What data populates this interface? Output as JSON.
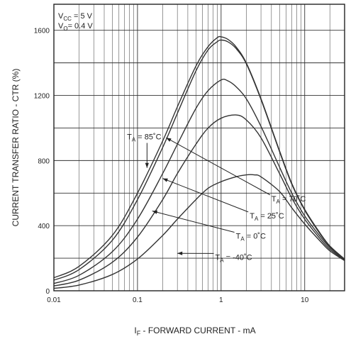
{
  "chart_data": {
    "type": "line",
    "title": "",
    "xlabel": "I_F - FORWARD CURRENT - mA",
    "xlabel_main": "I",
    "xlabel_sub": "F",
    "xlabel_rest": " - FORWARD CURRENT - mA",
    "ylabel": "CURRENT TRANSFER RATIO - CTR (%)",
    "xscale": "log",
    "xlim": [
      0.01,
      30
    ],
    "ylim": [
      0,
      1760
    ],
    "grid": true,
    "x_ticks": [
      {
        "value": 0.01,
        "label": "0.01"
      },
      {
        "value": 0.1,
        "label": "0.1"
      },
      {
        "value": 1,
        "label": "1"
      },
      {
        "value": 10,
        "label": "10"
      }
    ],
    "y_ticks": [
      {
        "value": 0,
        "label": "0"
      },
      {
        "value": 400,
        "label": "400"
      },
      {
        "value": 800,
        "label": "800"
      },
      {
        "value": 1200,
        "label": "1200"
      },
      {
        "value": 1600,
        "label": "1600"
      }
    ],
    "conditions": [
      {
        "main": "V",
        "sub": "CC",
        "rest": " = 5 V"
      },
      {
        "main": "V",
        "sub": "O",
        "rest": "= 0.4 V"
      }
    ],
    "series": [
      {
        "name": "T_A = 85°C",
        "label_main": "T",
        "label_sub": "A",
        "label_rest": " = 85˚C",
        "points": [
          [
            0.01,
            80
          ],
          [
            0.02,
            150
          ],
          [
            0.05,
            340
          ],
          [
            0.1,
            600
          ],
          [
            0.2,
            920
          ],
          [
            0.3,
            1130
          ],
          [
            0.5,
            1380
          ],
          [
            0.7,
            1500
          ],
          [
            0.9,
            1555
          ],
          [
            1.0,
            1560
          ],
          [
            1.2,
            1545
          ],
          [
            1.5,
            1500
          ],
          [
            2,
            1400
          ],
          [
            3,
            1180
          ],
          [
            5,
            860
          ],
          [
            7,
            660
          ],
          [
            10,
            500
          ],
          [
            15,
            360
          ],
          [
            20,
            275
          ],
          [
            30,
            195
          ]
        ]
      },
      {
        "name": "T_A = 70°C",
        "label_main": "T",
        "label_sub": "A",
        "label_rest": " = 70˚C",
        "points": [
          [
            0.01,
            65
          ],
          [
            0.02,
            130
          ],
          [
            0.05,
            310
          ],
          [
            0.1,
            560
          ],
          [
            0.2,
            880
          ],
          [
            0.3,
            1090
          ],
          [
            0.5,
            1350
          ],
          [
            0.7,
            1480
          ],
          [
            0.9,
            1530
          ],
          [
            1.0,
            1540
          ],
          [
            1.2,
            1530
          ],
          [
            1.5,
            1490
          ],
          [
            2,
            1395
          ],
          [
            3,
            1175
          ],
          [
            5,
            855
          ],
          [
            7,
            655
          ],
          [
            10,
            495
          ],
          [
            15,
            355
          ],
          [
            20,
            272
          ],
          [
            30,
            193
          ]
        ]
      },
      {
        "name": "T_A = 25°C",
        "label_main": "T",
        "label_sub": "A",
        "label_rest": " = 25˚C",
        "points": [
          [
            0.01,
            45
          ],
          [
            0.02,
            95
          ],
          [
            0.05,
            240
          ],
          [
            0.1,
            440
          ],
          [
            0.2,
            720
          ],
          [
            0.3,
            900
          ],
          [
            0.5,
            1120
          ],
          [
            0.7,
            1230
          ],
          [
            1.0,
            1295
          ],
          [
            1.2,
            1290
          ],
          [
            1.5,
            1255
          ],
          [
            2,
            1180
          ],
          [
            3,
            1010
          ],
          [
            5,
            760
          ],
          [
            7,
            600
          ],
          [
            10,
            460
          ],
          [
            15,
            340
          ],
          [
            20,
            265
          ],
          [
            30,
            190
          ]
        ]
      },
      {
        "name": "T_A = 0°C",
        "label_main": "T",
        "label_sub": "A",
        "label_rest": " = 0˚C",
        "points": [
          [
            0.01,
            30
          ],
          [
            0.02,
            65
          ],
          [
            0.05,
            175
          ],
          [
            0.1,
            330
          ],
          [
            0.2,
            560
          ],
          [
            0.3,
            720
          ],
          [
            0.5,
            900
          ],
          [
            0.7,
            1000
          ],
          [
            1.0,
            1060
          ],
          [
            1.5,
            1080
          ],
          [
            2,
            1050
          ],
          [
            3,
            940
          ],
          [
            5,
            720
          ],
          [
            7,
            570
          ],
          [
            10,
            440
          ],
          [
            15,
            325
          ],
          [
            20,
            255
          ],
          [
            30,
            188
          ]
        ]
      },
      {
        "name": "T_A = -40°C",
        "label_main": "T",
        "label_sub": "A",
        "label_rest": " = -40˚C",
        "points": [
          [
            0.01,
            15
          ],
          [
            0.02,
            35
          ],
          [
            0.05,
            100
          ],
          [
            0.1,
            195
          ],
          [
            0.2,
            340
          ],
          [
            0.3,
            440
          ],
          [
            0.5,
            560
          ],
          [
            0.7,
            630
          ],
          [
            1.0,
            670
          ],
          [
            1.5,
            700
          ],
          [
            2.0,
            712
          ],
          [
            2.5,
            712
          ],
          [
            3,
            700
          ],
          [
            5,
            610
          ],
          [
            7,
            510
          ],
          [
            10,
            410
          ],
          [
            15,
            310
          ],
          [
            20,
            245
          ],
          [
            30,
            185
          ]
        ]
      }
    ],
    "annotations": [
      {
        "series": 0,
        "text_x": 0.075,
        "text_y": 930,
        "arrow_to": [
          0.13,
          755
        ]
      },
      {
        "series": 1,
        "text_x": 4.0,
        "text_y": 550,
        "arrow_to": [
          0.22,
          940
        ]
      },
      {
        "series": 2,
        "text_x": 2.2,
        "text_y": 445,
        "arrow_to": [
          0.2,
          690
        ]
      },
      {
        "series": 3,
        "text_x": 1.5,
        "text_y": 320,
        "arrow_to": [
          0.15,
          490
        ]
      },
      {
        "series": 4,
        "text_x": 0.85,
        "text_y": 190,
        "arrow_to": [
          0.3,
          230
        ]
      }
    ],
    "colors": {
      "axis": "#222222",
      "curve": "#333333",
      "grid": "#444444"
    }
  }
}
